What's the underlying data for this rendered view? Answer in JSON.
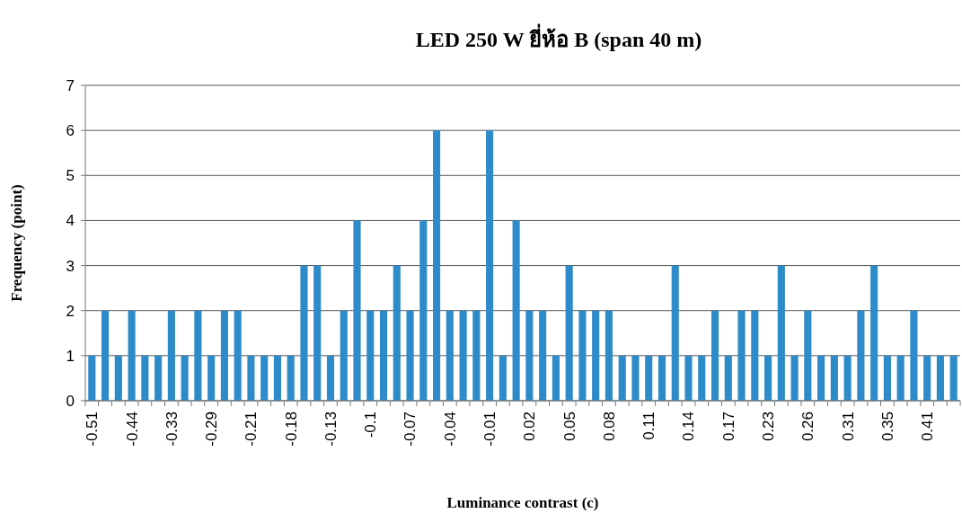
{
  "chart_data": {
    "type": "bar",
    "title": "LED 250 W ยี่ห้อ B (span 40 m)",
    "xlabel": "Luminance contrast (c)",
    "ylabel": "Frequency (point)",
    "categories": [
      "-0.51",
      null,
      null,
      "-0.44",
      null,
      null,
      "-0.33",
      null,
      null,
      "-0.29",
      null,
      null,
      "-0.21",
      null,
      null,
      "-0.18",
      null,
      null,
      "-0.13",
      null,
      null,
      "-0.1",
      null,
      null,
      "-0.07",
      null,
      null,
      "-0.04",
      null,
      null,
      "-0.01",
      null,
      null,
      "0.02",
      null,
      null,
      "0.05",
      null,
      null,
      "0.08",
      null,
      null,
      "0.11",
      null,
      null,
      "0.14",
      null,
      null,
      "0.17",
      null,
      null,
      "0.23",
      null,
      null,
      "0.26",
      null,
      null,
      "0.31",
      null,
      null,
      "0.35",
      null,
      null,
      "0.41",
      null,
      null
    ],
    "values": [
      1,
      2,
      1,
      2,
      1,
      1,
      2,
      1,
      2,
      1,
      2,
      2,
      1,
      1,
      1,
      1,
      3,
      3,
      1,
      2,
      4,
      2,
      2,
      3,
      2,
      4,
      6,
      2,
      2,
      2,
      6,
      1,
      4,
      2,
      2,
      1,
      3,
      2,
      2,
      2,
      1,
      1,
      1,
      1,
      3,
      1,
      1,
      2,
      1,
      2,
      2,
      1,
      3,
      1,
      2,
      1,
      1,
      1,
      2,
      3,
      1,
      1,
      2,
      1,
      1,
      1
    ],
    "color": "#2e8bc9",
    "ylim": [
      0,
      7
    ],
    "yticks": [
      0,
      1,
      2,
      3,
      4,
      5,
      6,
      7
    ],
    "grid": "y"
  }
}
